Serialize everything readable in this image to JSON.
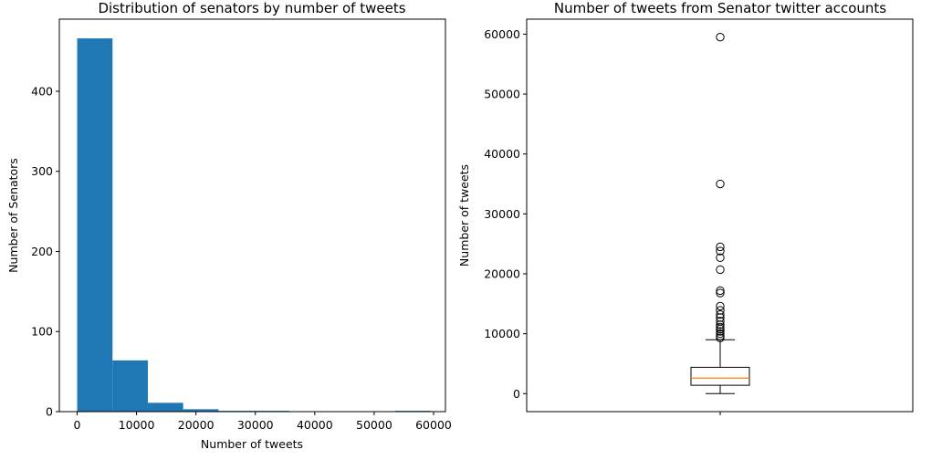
{
  "chart_data": [
    {
      "type": "histogram",
      "title": "Distribution of senators by number of tweets",
      "xlabel": "Number of tweets",
      "ylabel": "Number of Senators",
      "xlim": [
        -3000,
        62000
      ],
      "ylim": [
        0,
        490
      ],
      "xticks": [
        0,
        10000,
        20000,
        30000,
        40000,
        50000,
        60000
      ],
      "yticks": [
        0,
        100,
        200,
        300,
        400
      ],
      "bin_edges": [
        0,
        5950,
        11900,
        17850,
        23800,
        29750,
        35700,
        41650,
        47600,
        53550,
        59500
      ],
      "counts": [
        466,
        64,
        11,
        3,
        1,
        1,
        0,
        0,
        0,
        1
      ],
      "bar_color": "#1f77b4"
    },
    {
      "type": "box",
      "title": "Number of tweets from Senator twitter accounts",
      "xlabel": "",
      "ylabel": "Number of tweets",
      "ylim": [
        -3000,
        62500
      ],
      "yticks": [
        0,
        10000,
        20000,
        30000,
        40000,
        50000,
        60000
      ],
      "stats": {
        "whisker_low": 0,
        "q1": 1400,
        "median": 2600,
        "q3": 4400,
        "whisker_high": 9000
      },
      "outliers": [
        59500,
        35000,
        24500,
        23800,
        22700,
        20700,
        17200,
        16800,
        14600,
        13900,
        13200,
        12700,
        12100,
        11500,
        11100,
        10800,
        10400,
        10000,
        9600,
        9300
      ],
      "median_color": "#ff7f0e"
    }
  ]
}
